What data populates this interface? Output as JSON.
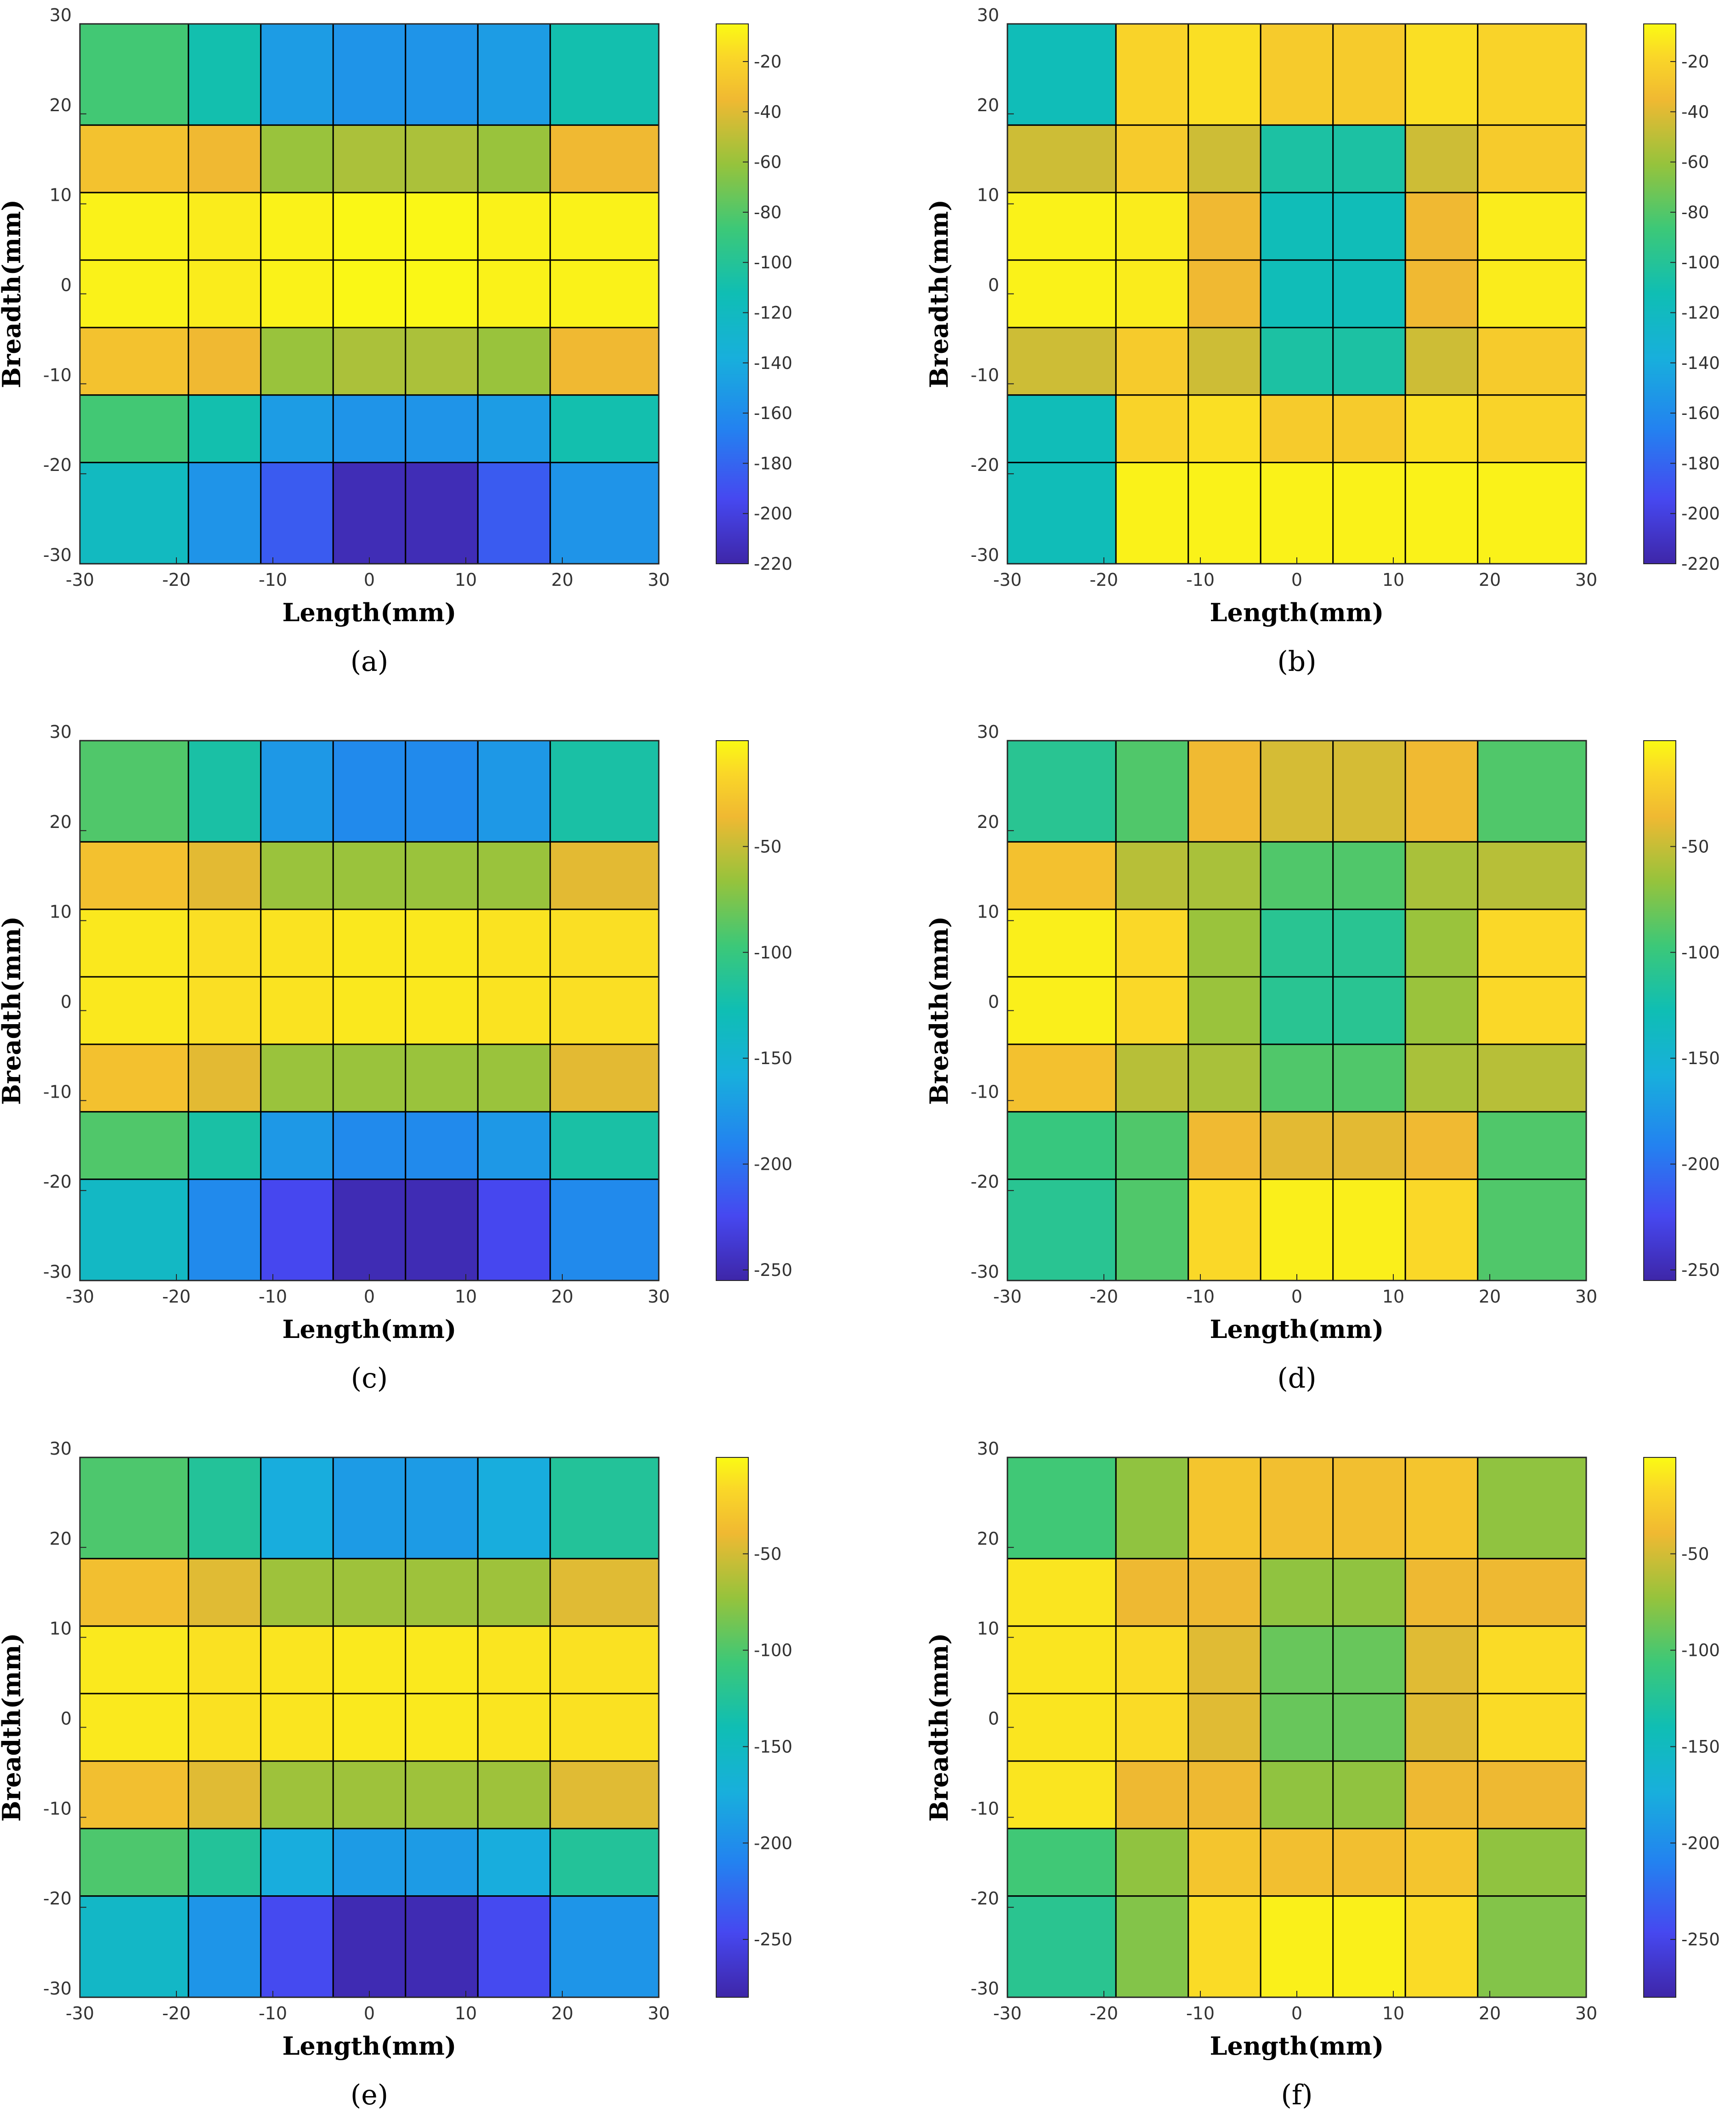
{
  "figure": {
    "panels": [
      {
        "caption": "(a)",
        "label": "a"
      },
      {
        "caption": "(b)",
        "label": "b"
      },
      {
        "caption": "(c)",
        "label": "c"
      },
      {
        "caption": "(d)",
        "label": "d"
      },
      {
        "caption": "(e)",
        "label": "e"
      },
      {
        "caption": "(f)",
        "label": "f"
      }
    ]
  },
  "chart_data": [
    {
      "type": "heatmap",
      "panel": "a",
      "xlabel": "Length(mm)",
      "ylabel": "Breadth(mm)",
      "xlim": [
        -30,
        30
      ],
      "ylim": [
        -30,
        30
      ],
      "x_ticks": [
        -30,
        -20,
        -10,
        0,
        10,
        20,
        30
      ],
      "y_ticks": [
        -30,
        -20,
        -10,
        0,
        10,
        20,
        30
      ],
      "x_edges": [
        -30,
        -18.75,
        -11.25,
        -3.75,
        3.75,
        11.25,
        18.75,
        30
      ],
      "y_edges": [
        -30,
        -18.75,
        -11.25,
        -3.75,
        3.75,
        11.25,
        18.75,
        30
      ],
      "values_top_to_bottom": [
        [
          -85,
          -110,
          -150,
          -155,
          -155,
          -150,
          -110
        ],
        [
          -30,
          -35,
          -60,
          -55,
          -55,
          -60,
          -35
        ],
        [
          -8,
          -10,
          -8,
          -6,
          -6,
          -8,
          -8
        ],
        [
          -8,
          -10,
          -8,
          -6,
          -6,
          -8,
          -8
        ],
        [
          -30,
          -35,
          -60,
          -55,
          -55,
          -60,
          -35
        ],
        [
          -85,
          -110,
          -150,
          -155,
          -155,
          -150,
          -110
        ],
        [
          -120,
          -155,
          -185,
          -215,
          -215,
          -185,
          -155
        ]
      ],
      "colorbar": {
        "min": -220,
        "max": -5,
        "ticks": [
          -20,
          -40,
          -60,
          -80,
          -100,
          -120,
          -140,
          -160,
          -180,
          -200,
          -220
        ]
      }
    },
    {
      "type": "heatmap",
      "panel": "b",
      "xlabel": "Length(mm)",
      "ylabel": "Breadth(mm)",
      "xlim": [
        -30,
        30
      ],
      "ylim": [
        -30,
        30
      ],
      "x_ticks": [
        -30,
        -20,
        -10,
        0,
        10,
        20,
        30
      ],
      "y_ticks": [
        -30,
        -20,
        -10,
        0,
        10,
        20,
        30
      ],
      "x_edges": [
        -30,
        -18.75,
        -11.25,
        -3.75,
        3.75,
        11.25,
        18.75,
        30
      ],
      "y_edges": [
        -30,
        -18.75,
        -11.25,
        -3.75,
        3.75,
        11.25,
        18.75,
        30
      ],
      "values_top_to_bottom": [
        [
          -115,
          -20,
          -15,
          -25,
          -25,
          -15,
          -20
        ],
        [
          -45,
          -25,
          -45,
          -105,
          -105,
          -45,
          -25
        ],
        [
          -8,
          -10,
          -35,
          -115,
          -115,
          -35,
          -10
        ],
        [
          -8,
          -10,
          -35,
          -115,
          -115,
          -35,
          -10
        ],
        [
          -45,
          -25,
          -45,
          -105,
          -105,
          -45,
          -25
        ],
        [
          -115,
          -20,
          -15,
          -25,
          -25,
          -15,
          -20
        ],
        [
          -115,
          -8,
          -8,
          -8,
          -8,
          -8,
          -8
        ]
      ],
      "colorbar": {
        "min": -220,
        "max": -5,
        "ticks": [
          -20,
          -40,
          -60,
          -80,
          -100,
          -120,
          -140,
          -160,
          -180,
          -200,
          -220
        ]
      }
    },
    {
      "type": "heatmap",
      "panel": "c",
      "xlabel": "Length(mm)",
      "ylabel": "Breadth(mm)",
      "xlim": [
        -30,
        30
      ],
      "ylim": [
        -30,
        30
      ],
      "x_ticks": [
        -30,
        -20,
        -10,
        0,
        10,
        20,
        30
      ],
      "y_ticks": [
        -30,
        -20,
        -10,
        0,
        10,
        20,
        30
      ],
      "x_edges": [
        -30,
        -18.75,
        -11.25,
        -3.75,
        3.75,
        11.25,
        18.75,
        30
      ],
      "y_edges": [
        -30,
        -18.75,
        -11.25,
        -3.75,
        3.75,
        11.25,
        18.75,
        30
      ],
      "values_top_to_bottom": [
        [
          -90,
          -120,
          -175,
          -185,
          -185,
          -175,
          -120
        ],
        [
          -30,
          -40,
          -65,
          -65,
          -65,
          -65,
          -40
        ],
        [
          -8,
          -12,
          -10,
          -8,
          -8,
          -10,
          -12
        ],
        [
          -8,
          -12,
          -10,
          -8,
          -8,
          -10,
          -12
        ],
        [
          -30,
          -40,
          -65,
          -65,
          -65,
          -65,
          -40
        ],
        [
          -90,
          -120,
          -175,
          -185,
          -185,
          -175,
          -120
        ],
        [
          -140,
          -185,
          -225,
          -250,
          -250,
          -225,
          -185
        ]
      ],
      "colorbar": {
        "min": -255,
        "max": 0,
        "ticks": [
          -50,
          -100,
          -150,
          -200,
          -250
        ]
      }
    },
    {
      "type": "heatmap",
      "panel": "d",
      "xlabel": "Length(mm)",
      "ylabel": "Breadth(mm)",
      "xlim": [
        -30,
        30
      ],
      "ylim": [
        -30,
        30
      ],
      "x_ticks": [
        -30,
        -20,
        -10,
        0,
        10,
        20,
        30
      ],
      "y_ticks": [
        -30,
        -20,
        -10,
        0,
        10,
        20,
        30
      ],
      "x_edges": [
        -30,
        -18.75,
        -11.25,
        -3.75,
        3.75,
        11.25,
        18.75,
        30
      ],
      "y_edges": [
        -30,
        -18.75,
        -11.25,
        -3.75,
        3.75,
        11.25,
        18.75,
        30
      ],
      "values_top_to_bottom": [
        [
          -110,
          -90,
          -35,
          -45,
          -45,
          -35,
          -90
        ],
        [
          -30,
          -55,
          -60,
          -90,
          -90,
          -60,
          -55
        ],
        [
          -5,
          -15,
          -65,
          -110,
          -110,
          -65,
          -15
        ],
        [
          -5,
          -15,
          -65,
          -110,
          -110,
          -65,
          -15
        ],
        [
          -30,
          -55,
          -60,
          -90,
          -90,
          -60,
          -55
        ],
        [
          -100,
          -90,
          -35,
          -40,
          -40,
          -35,
          -90
        ],
        [
          -110,
          -90,
          -15,
          -5,
          -5,
          -15,
          -90
        ]
      ],
      "colorbar": {
        "min": -255,
        "max": 0,
        "ticks": [
          -50,
          -100,
          -150,
          -200,
          -250
        ]
      }
    },
    {
      "type": "heatmap",
      "panel": "e",
      "xlabel": "Length(mm)",
      "ylabel": "Breadth(mm)",
      "xlim": [
        -30,
        30
      ],
      "ylim": [
        -30,
        30
      ],
      "x_ticks": [
        -30,
        -20,
        -10,
        0,
        10,
        20,
        30
      ],
      "y_ticks": [
        -30,
        -20,
        -10,
        0,
        10,
        20,
        30
      ],
      "x_edges": [
        -30,
        -18.75,
        -11.25,
        -3.75,
        3.75,
        11.25,
        18.75,
        30
      ],
      "y_edges": [
        -30,
        -18.75,
        -11.25,
        -3.75,
        3.75,
        11.25,
        18.75,
        30
      ],
      "values_top_to_bottom": [
        [
          -100,
          -125,
          -175,
          -190,
          -190,
          -175,
          -125
        ],
        [
          -35,
          -45,
          -70,
          -70,
          -70,
          -70,
          -45
        ],
        [
          -8,
          -12,
          -10,
          -8,
          -8,
          -10,
          -12
        ],
        [
          -8,
          -12,
          -10,
          -8,
          -8,
          -10,
          -12
        ],
        [
          -35,
          -45,
          -70,
          -70,
          -70,
          -70,
          -45
        ],
        [
          -100,
          -125,
          -175,
          -190,
          -190,
          -175,
          -125
        ],
        [
          -155,
          -195,
          -245,
          -275,
          -275,
          -245,
          -195
        ]
      ],
      "colorbar": {
        "min": -280,
        "max": 0,
        "ticks": [
          -50,
          -100,
          -150,
          -200,
          -250
        ]
      }
    },
    {
      "type": "heatmap",
      "panel": "f",
      "xlabel": "Length(mm)",
      "ylabel": "Breadth(mm)",
      "xlim": [
        -30,
        30
      ],
      "ylim": [
        -30,
        30
      ],
      "x_ticks": [
        -30,
        -20,
        -10,
        0,
        10,
        20,
        30
      ],
      "y_ticks": [
        -30,
        -20,
        -10,
        0,
        10,
        20,
        30
      ],
      "x_edges": [
        -30,
        -18.75,
        -11.25,
        -3.75,
        3.75,
        11.25,
        18.75,
        30
      ],
      "y_edges": [
        -30,
        -18.75,
        -11.25,
        -3.75,
        3.75,
        11.25,
        18.75,
        30
      ],
      "values_top_to_bottom": [
        [
          -105,
          -75,
          -30,
          -35,
          -35,
          -30,
          -75
        ],
        [
          -10,
          -40,
          -40,
          -75,
          -75,
          -40,
          -40
        ],
        [
          -10,
          -15,
          -45,
          -90,
          -90,
          -45,
          -15
        ],
        [
          -10,
          -15,
          -45,
          -90,
          -90,
          -45,
          -15
        ],
        [
          -10,
          -40,
          -40,
          -75,
          -75,
          -40,
          -40
        ],
        [
          -105,
          -75,
          -30,
          -35,
          -35,
          -30,
          -75
        ],
        [
          -120,
          -80,
          -15,
          -5,
          -5,
          -15,
          -80
        ]
      ],
      "colorbar": {
        "min": -280,
        "max": 0,
        "ticks": [
          -50,
          -100,
          -150,
          -200,
          -250
        ]
      }
    }
  ]
}
